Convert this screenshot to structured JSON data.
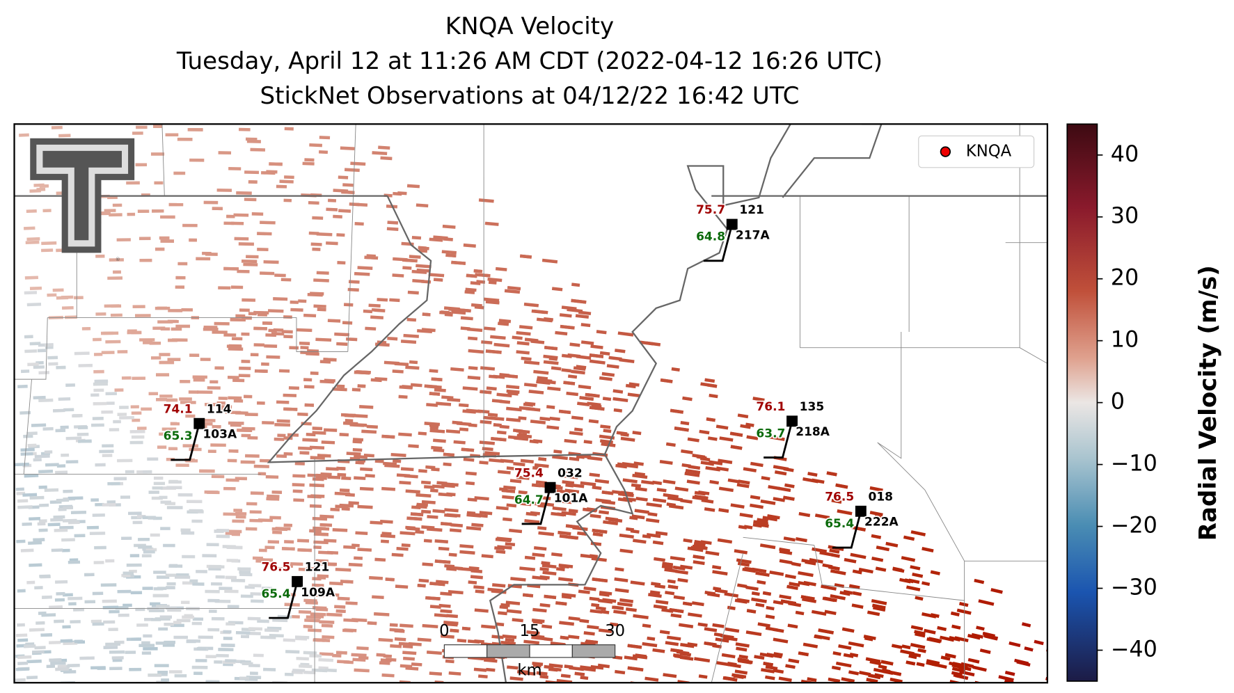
{
  "title_lines": [
    "KNQA Velocity",
    "Tuesday, April 12 at 11:26 AM CDT (2022-04-12 16:26 UTC)",
    "StickNet Observations at 04/12/22 16:42 UTC"
  ],
  "legend": {
    "label": "KNQA"
  },
  "colorbar": {
    "label": "Radial Velocity (m/s)",
    "lim": [
      -45,
      45
    ],
    "ticks": [
      40,
      30,
      20,
      10,
      0,
      {
        "value": -10,
        "label": "−10"
      },
      {
        "value": -20,
        "label": "−20"
      },
      {
        "value": -30,
        "label": "−30"
      },
      {
        "value": -40,
        "label": "−40"
      }
    ]
  },
  "stations": [
    {
      "temperature": 75.7,
      "dewpoint": 64.8,
      "code": "121",
      "id": "217A"
    },
    {
      "temperature": 74.1,
      "dewpoint": 65.3,
      "code": "114",
      "id": "103A"
    },
    {
      "temperature": 76.1,
      "dewpoint": 63.7,
      "code": "135",
      "id": "218A"
    },
    {
      "temperature": 75.4,
      "dewpoint": 64.7,
      "code": "032",
      "id": "101A"
    },
    {
      "temperature": 76.5,
      "dewpoint": 65.4,
      "code": "018",
      "id": "222A"
    },
    {
      "temperature": 76.5,
      "dewpoint": 65.4,
      "code": "121",
      "id": "109A"
    }
  ],
  "scale_bar": {
    "ticks": [
      0,
      15,
      30
    ],
    "unit": "km"
  }
}
